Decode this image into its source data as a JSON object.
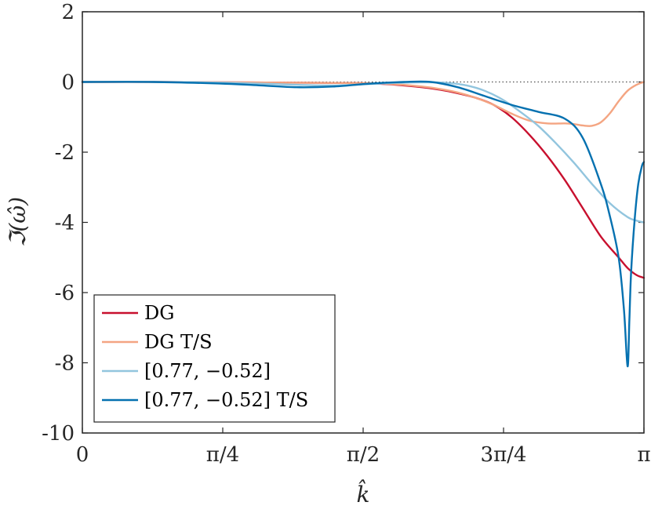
{
  "chart_data": {
    "type": "line",
    "title": "",
    "xlabel": "k̂",
    "ylabel": "ℑ(ω̂)",
    "xlim": [
      0,
      3.14159
    ],
    "ylim": [
      -10,
      2
    ],
    "grid": false,
    "legend_position": "bottom-left",
    "x_ticks": [
      {
        "value": 0,
        "label": "0"
      },
      {
        "value": 0.785398,
        "label": "π/4"
      },
      {
        "value": 1.570796,
        "label": "π/2"
      },
      {
        "value": 2.356194,
        "label": "3π/4"
      },
      {
        "value": 3.141593,
        "label": "π"
      }
    ],
    "y_ticks": [
      {
        "value": 2,
        "label": "2"
      },
      {
        "value": 0,
        "label": "0"
      },
      {
        "value": -2,
        "label": "-2"
      },
      {
        "value": -4,
        "label": "-4"
      },
      {
        "value": -6,
        "label": "-6"
      },
      {
        "value": -8,
        "label": "-8"
      },
      {
        "value": -10,
        "label": "-10"
      }
    ],
    "reference_line": {
      "y": 0,
      "style": "dotted",
      "color": "#333333"
    },
    "series": [
      {
        "name": "DG",
        "color": "#c8102e",
        "x": [
          0,
          0.4,
          0.8,
          1.2,
          1.5,
          1.7,
          1.9,
          2.0,
          2.1,
          2.2,
          2.3,
          2.4,
          2.5,
          2.6,
          2.7,
          2.8,
          2.9,
          3.0,
          3.05,
          3.1,
          3.14159
        ],
        "y": [
          0,
          0,
          -0.01,
          -0.02,
          -0.03,
          -0.06,
          -0.15,
          -0.22,
          -0.32,
          -0.45,
          -0.65,
          -1.0,
          -1.5,
          -2.1,
          -2.8,
          -3.6,
          -4.4,
          -5.0,
          -5.3,
          -5.5,
          -5.58
        ]
      },
      {
        "name": "DG T/S",
        "color": "#f4a582",
        "x": [
          0,
          0.4,
          0.8,
          1.2,
          1.5,
          1.7,
          1.9,
          2.0,
          2.1,
          2.2,
          2.3,
          2.4,
          2.5,
          2.6,
          2.7,
          2.75,
          2.8,
          2.85,
          2.9,
          2.95,
          3.0,
          3.05,
          3.1,
          3.14159
        ],
        "y": [
          0,
          0,
          -0.01,
          -0.02,
          -0.03,
          -0.05,
          -0.13,
          -0.2,
          -0.3,
          -0.45,
          -0.65,
          -0.9,
          -1.1,
          -1.18,
          -1.18,
          -1.2,
          -1.24,
          -1.25,
          -1.15,
          -0.9,
          -0.55,
          -0.25,
          -0.08,
          0
        ]
      },
      {
        "name": "[0.77, −0.52]",
        "color": "#92c5de",
        "x": [
          0,
          0.4,
          0.8,
          1.2,
          1.4,
          1.6,
          1.8,
          1.95,
          2.05,
          2.15,
          2.25,
          2.35,
          2.45,
          2.55,
          2.65,
          2.75,
          2.85,
          2.95,
          3.05,
          3.1,
          3.14159
        ],
        "y": [
          0,
          0,
          -0.02,
          -0.08,
          -0.1,
          -0.06,
          -0.02,
          -0.01,
          -0.03,
          -0.1,
          -0.25,
          -0.5,
          -0.85,
          -1.25,
          -1.75,
          -2.3,
          -2.9,
          -3.45,
          -3.85,
          -3.95,
          -4.0
        ]
      },
      {
        "name": "[0.77, −0.52] T/S",
        "color": "#0571b0",
        "x": [
          0,
          0.4,
          0.8,
          1.0,
          1.2,
          1.4,
          1.6,
          1.8,
          1.95,
          2.1,
          2.25,
          2.4,
          2.55,
          2.7,
          2.8,
          2.9,
          2.95,
          3.0,
          3.03,
          3.05,
          3.06,
          3.07,
          3.09,
          3.11,
          3.13,
          3.14159
        ],
        "y": [
          0,
          0,
          -0.05,
          -0.1,
          -0.15,
          -0.13,
          -0.05,
          0,
          0,
          -0.15,
          -0.4,
          -0.65,
          -0.85,
          -1.05,
          -1.6,
          -2.9,
          -3.8,
          -5.0,
          -6.5,
          -8.1,
          -6.8,
          -5.4,
          -3.9,
          -2.9,
          -2.4,
          -2.28
        ]
      }
    ]
  }
}
